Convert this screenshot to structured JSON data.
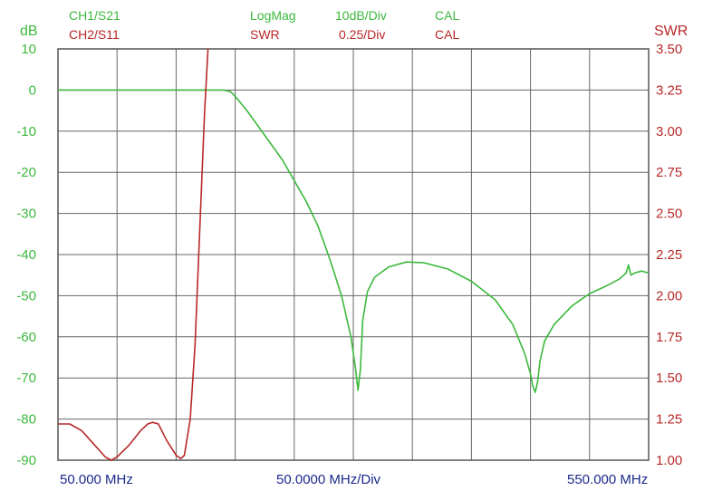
{
  "header": {
    "ch1": {
      "label": "CH1/S21",
      "format": "LogMag",
      "scale": "10dB/Div",
      "cal": "CAL"
    },
    "ch2": {
      "label": "CH2/S11",
      "format": "SWR",
      "scale": "0.25/Div",
      "cal": "CAL"
    }
  },
  "footer": {
    "start": "50.000 MHz",
    "span": "50.0000 MHz/Div",
    "stop": "550.000 MHz"
  },
  "colors": {
    "ch1": "#3cb83c",
    "ch2": "#b82828",
    "grid": "#666666",
    "background": "#ffffff"
  },
  "chart_data": {
    "type": "line",
    "x_unit": "MHz",
    "xlim": [
      50,
      550
    ],
    "x_divisions": 10,
    "left_axis": {
      "label": "dB",
      "ylim": [
        -90,
        10
      ],
      "ticks": [
        "10",
        "0",
        "-10",
        "-20",
        "-30",
        "-40",
        "-50",
        "-60",
        "-70",
        "-80",
        "-90"
      ]
    },
    "right_axis": {
      "label": "SWR",
      "ylim": [
        1.0,
        3.5
      ],
      "ticks": [
        "3.50",
        "3.25",
        "3.00",
        "2.75",
        "2.50",
        "2.25",
        "2.00",
        "1.75",
        "1.50",
        "1.25",
        "1.00"
      ]
    },
    "grid": true,
    "series": [
      {
        "name": "CH1/S21",
        "axis": "left",
        "points": [
          [
            50,
            0
          ],
          [
            100,
            0
          ],
          [
            150,
            0
          ],
          [
            190,
            0
          ],
          [
            196,
            -0.4
          ],
          [
            200,
            -1.5
          ],
          [
            210,
            -5
          ],
          [
            220,
            -9
          ],
          [
            230,
            -13
          ],
          [
            240,
            -17
          ],
          [
            250,
            -22
          ],
          [
            260,
            -27
          ],
          [
            270,
            -33
          ],
          [
            280,
            -41
          ],
          [
            290,
            -50
          ],
          [
            298,
            -60
          ],
          [
            302,
            -68
          ],
          [
            304,
            -73
          ],
          [
            306,
            -68
          ],
          [
            308,
            -56
          ],
          [
            312,
            -49
          ],
          [
            318,
            -45.5
          ],
          [
            330,
            -43
          ],
          [
            345,
            -41.8
          ],
          [
            360,
            -42
          ],
          [
            380,
            -43.5
          ],
          [
            400,
            -46.5
          ],
          [
            420,
            -51
          ],
          [
            435,
            -57
          ],
          [
            445,
            -64
          ],
          [
            450,
            -69
          ],
          [
            452,
            -72
          ],
          [
            454,
            -73.5
          ],
          [
            456,
            -71
          ],
          [
            458,
            -66
          ],
          [
            462,
            -61
          ],
          [
            470,
            -57
          ],
          [
            485,
            -52.5
          ],
          [
            500,
            -49.5
          ],
          [
            515,
            -47.5
          ],
          [
            525,
            -46
          ],
          [
            531,
            -44.5
          ],
          [
            533,
            -42.5
          ],
          [
            535,
            -45
          ],
          [
            538,
            -44.5
          ],
          [
            544,
            -44
          ],
          [
            550,
            -44.5
          ]
        ]
      },
      {
        "name": "CH2/S11",
        "axis": "right",
        "points": [
          [
            50,
            1.22
          ],
          [
            60,
            1.22
          ],
          [
            70,
            1.18
          ],
          [
            80,
            1.1
          ],
          [
            90,
            1.02
          ],
          [
            95,
            1.0
          ],
          [
            100,
            1.02
          ],
          [
            110,
            1.09
          ],
          [
            120,
            1.18
          ],
          [
            126,
            1.22
          ],
          [
            130,
            1.23
          ],
          [
            135,
            1.22
          ],
          [
            142,
            1.12
          ],
          [
            150,
            1.03
          ],
          [
            154,
            1.01
          ],
          [
            157,
            1.03
          ],
          [
            162,
            1.25
          ],
          [
            166,
            1.7
          ],
          [
            170,
            2.4
          ],
          [
            174,
            3.1
          ],
          [
            177,
            3.5
          ]
        ]
      }
    ]
  }
}
